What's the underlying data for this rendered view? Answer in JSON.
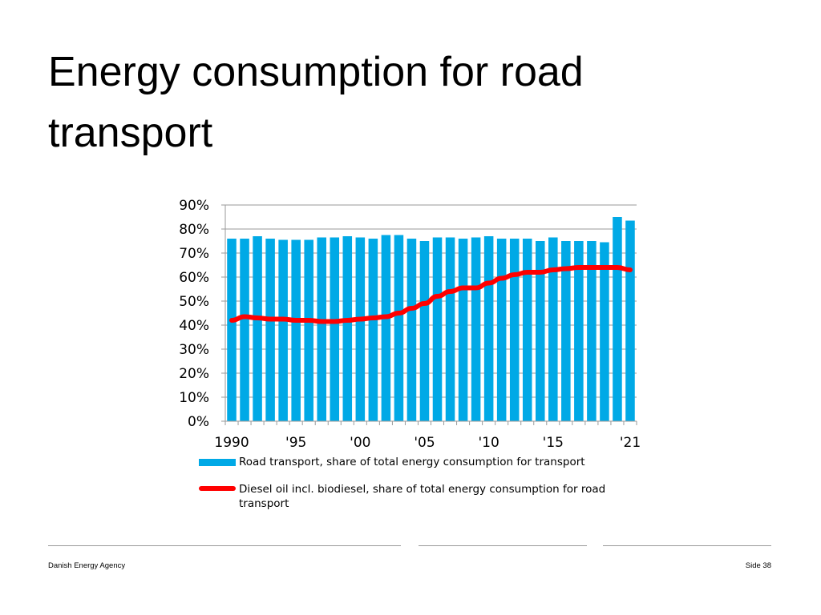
{
  "slide": {
    "title": "Energy consumption for road transport"
  },
  "chart_data": {
    "type": "bar",
    "x": [
      1990,
      1991,
      1992,
      1993,
      1994,
      1995,
      1996,
      1997,
      1998,
      1999,
      2000,
      2001,
      2002,
      2003,
      2004,
      2005,
      2006,
      2007,
      2008,
      2009,
      2010,
      2011,
      2012,
      2013,
      2014,
      2015,
      2016,
      2017,
      2018,
      2019,
      2020,
      2021
    ],
    "x_tick_labels": [
      {
        "x": 1990,
        "label": "1990"
      },
      {
        "x": 1995,
        "label": "'95"
      },
      {
        "x": 2000,
        "label": "'00"
      },
      {
        "x": 2005,
        "label": "'05"
      },
      {
        "x": 2010,
        "label": "'10"
      },
      {
        "x": 2015,
        "label": "'15"
      },
      {
        "x": 2021,
        "label": "'21"
      }
    ],
    "y_ticks": [
      "0%",
      "10%",
      "20%",
      "30%",
      "40%",
      "50%",
      "60%",
      "70%",
      "80%",
      "90%"
    ],
    "ylim": [
      0,
      90
    ],
    "grid": true,
    "legend_position": "bottom",
    "series": [
      {
        "name": "Road transport, share of total energy consumption for transport",
        "type": "bar",
        "color": "#00a9e6",
        "values": [
          76,
          76,
          77,
          76,
          75.5,
          75.5,
          75.5,
          76.5,
          76.5,
          77,
          76.5,
          76,
          77.5,
          77.5,
          76,
          75,
          76.5,
          76.5,
          76,
          76.5,
          77,
          76,
          76,
          76,
          75,
          76.5,
          75,
          75,
          75,
          74.5,
          85,
          83.5
        ]
      },
      {
        "name": "Diesel oil incl. biodiesel, share of total energy consumption for road transport",
        "type": "line",
        "color": "#ff0000",
        "values": [
          42,
          43.5,
          43,
          42.5,
          42.5,
          42,
          42,
          41.5,
          41.5,
          42,
          42.5,
          43,
          43.5,
          45,
          47,
          49,
          52,
          54,
          55.5,
          55.5,
          57.5,
          59.5,
          61,
          62,
          62,
          63,
          63.5,
          64,
          64,
          64,
          64,
          63
        ]
      }
    ]
  },
  "footer": {
    "left": "Danish Energy Agency",
    "right": "Side 38"
  }
}
